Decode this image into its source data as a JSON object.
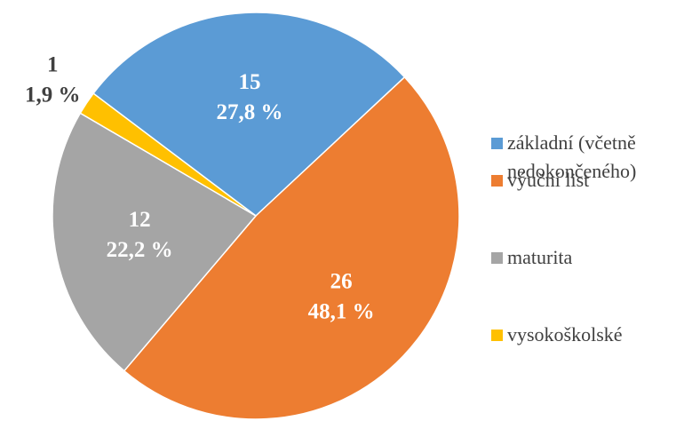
{
  "chart_data": {
    "type": "pie",
    "categories": [
      "základní (včetně nedokončeného)",
      "výuční list",
      "maturita",
      "vysokoškolské"
    ],
    "values": [
      15,
      26,
      12,
      1
    ],
    "percentages": [
      27.8,
      48.1,
      22.2,
      1.9
    ],
    "percentage_labels": [
      "27,8 %",
      "48,1 %",
      "22,2 %",
      "1,9 %"
    ],
    "colors": [
      "#5b9bd5",
      "#ed7d31",
      "#a5a5a5",
      "#ffc000"
    ],
    "legend": "right"
  }
}
